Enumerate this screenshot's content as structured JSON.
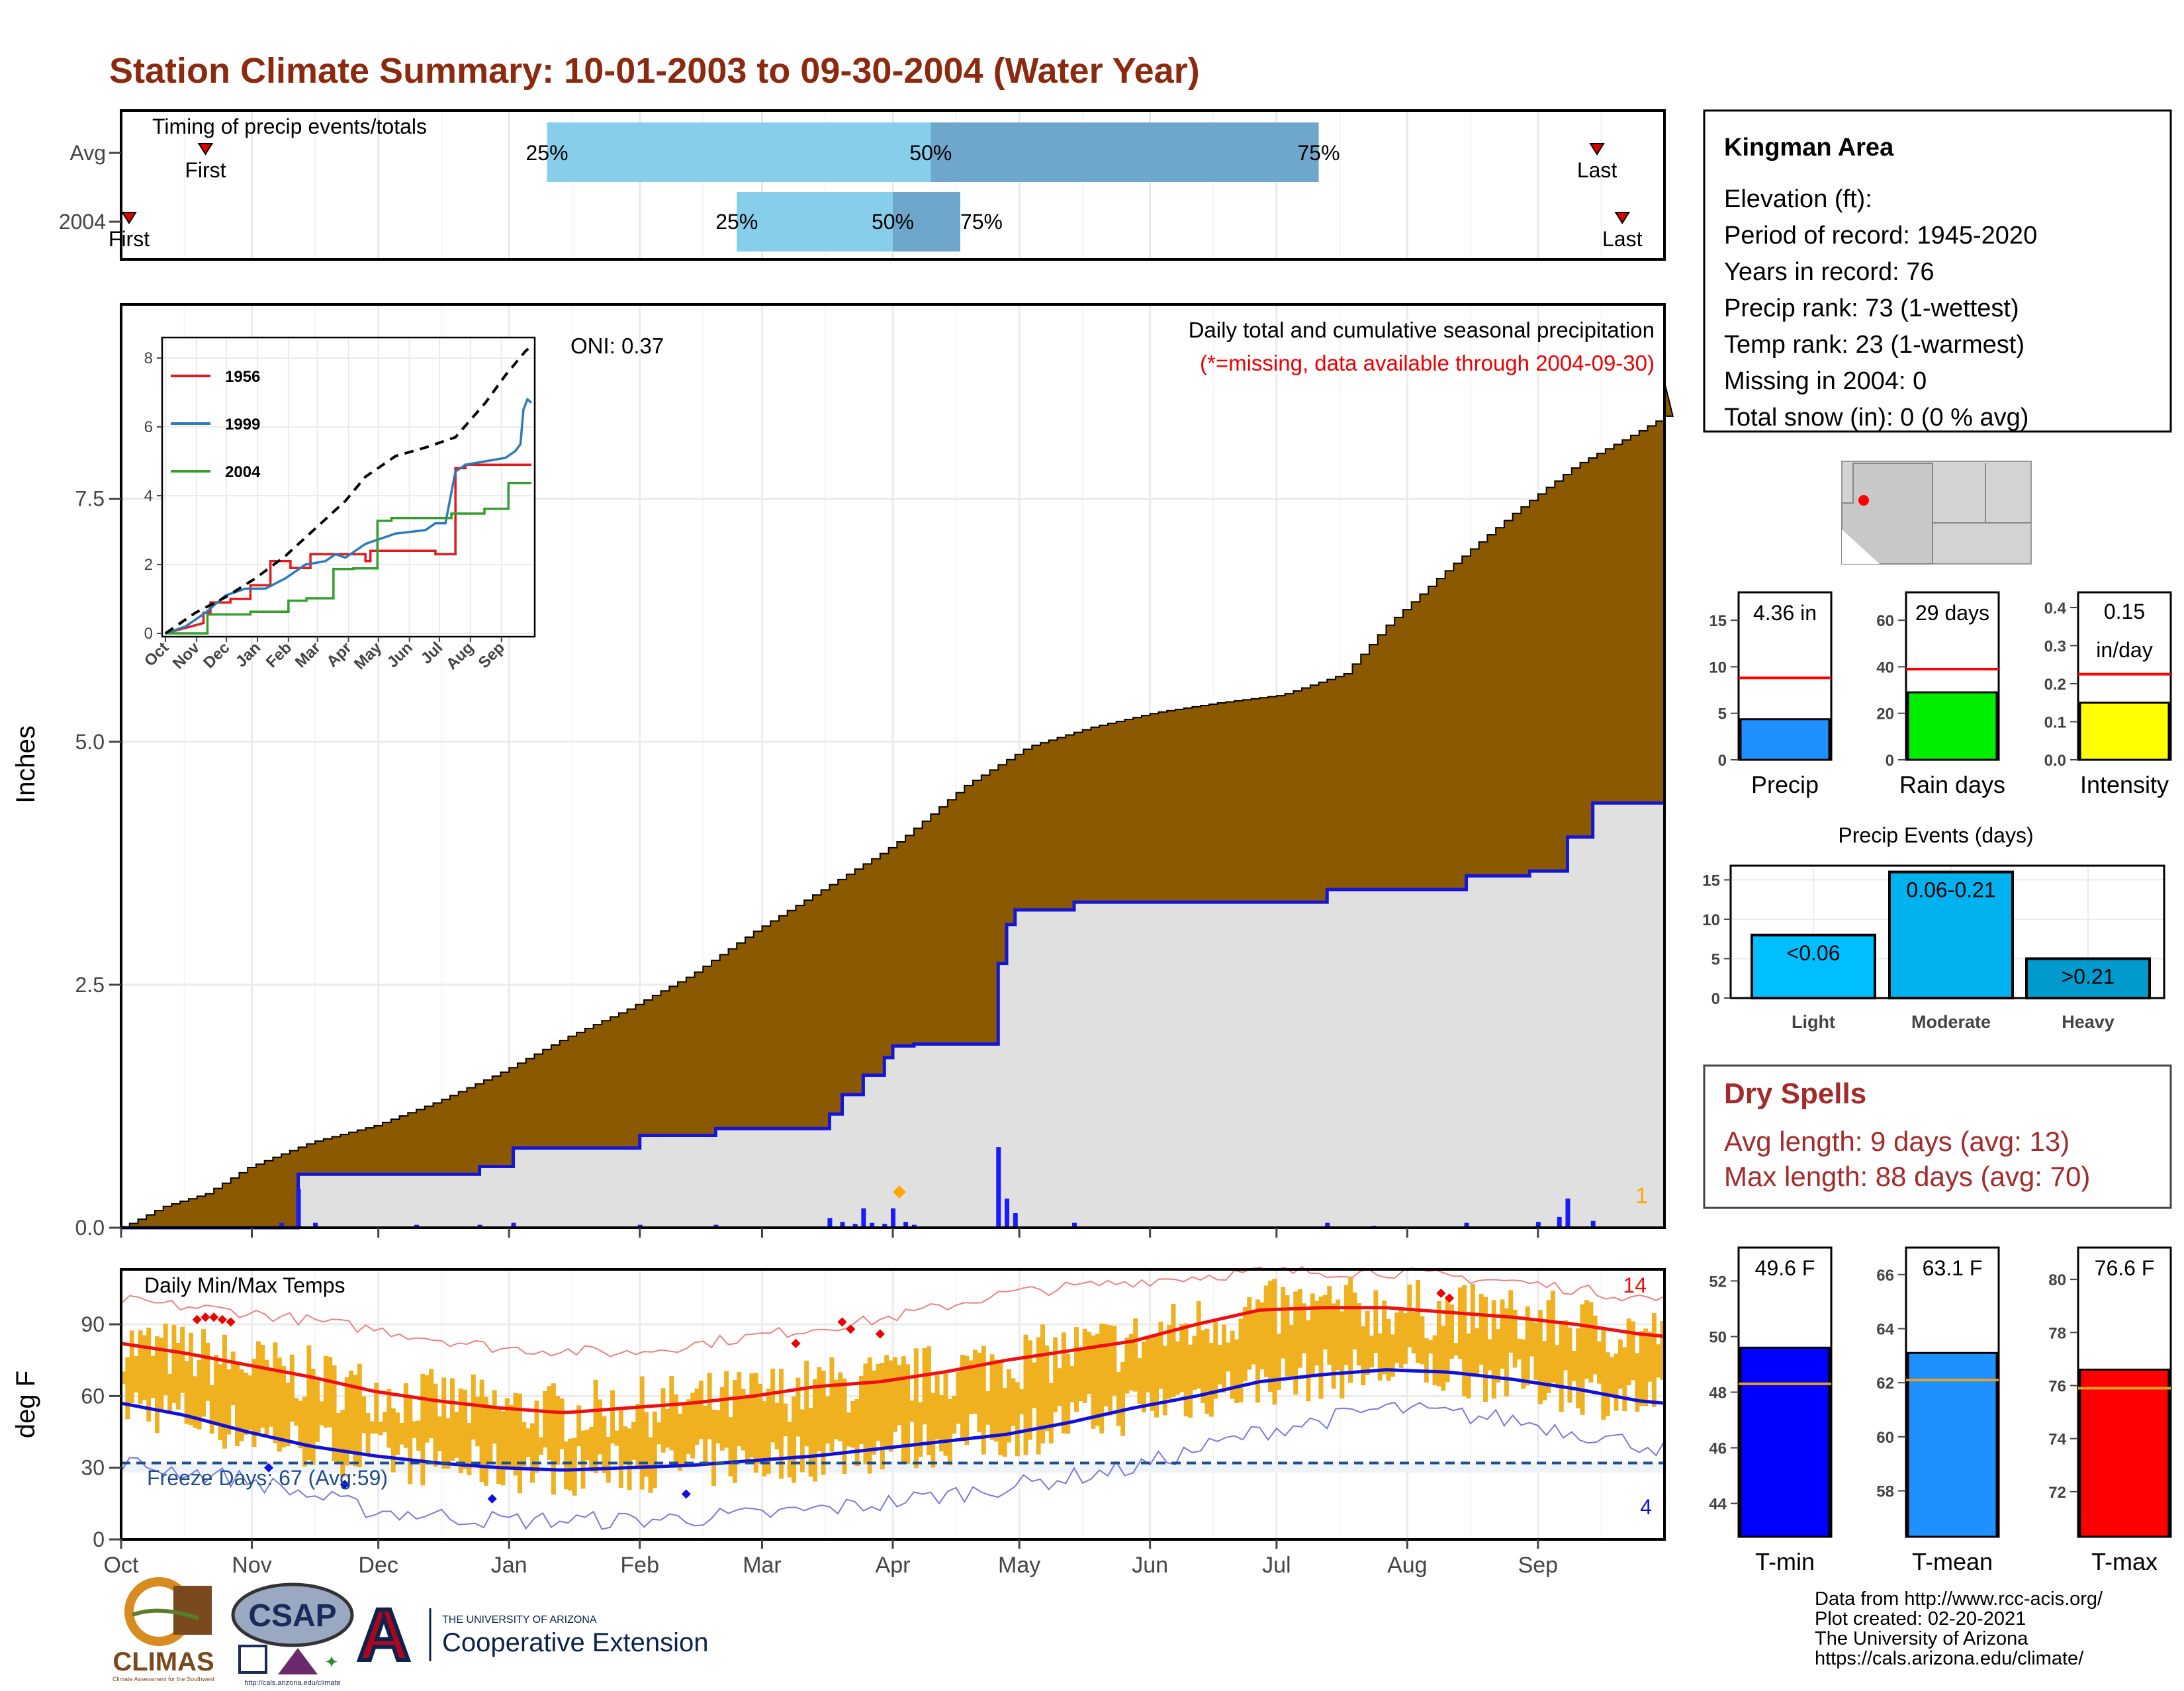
{
  "title": "Station Climate Summary: 10-01-2003 to 09-30-2004 (Water Year)",
  "colors": {
    "title": "#8B2A0E",
    "cum_avg_fill": "#8B5A00",
    "cum_obs_fill": "#E0E0E0",
    "cum_obs_line": "#1515D9",
    "daily_bar": "#1a1aff",
    "temp_bar": "#EFB120",
    "avg_max_line": "#EE1010",
    "avg_min_line": "#1010DD",
    "timing_light": "#87CEEB",
    "timing_dark": "#6FA6CC",
    "dryspell_text": "#A52A2A",
    "precip_bar": "#1E90FF",
    "raindays_bar": "#00EE00",
    "intensity_bar": "#FFFF00",
    "tmin_bar": "#0000FF",
    "tmean_bar": "#1E90FF",
    "tmax_bar": "#FF0000",
    "events_light": "#00BFFF",
    "events_moderate": "#00B2EE",
    "events_heavy": "#009ACD"
  },
  "timing": {
    "label": "Timing of precip events/totals",
    "rows": [
      "Avg",
      "2004"
    ],
    "avg": {
      "first_label": "First",
      "last_label": "Last",
      "p25": "25%",
      "p50": "50%",
      "p75": "75%"
    },
    "y2004": {
      "first_label": "First",
      "last_label": "Last",
      "p25": "25%",
      "p50": "50%",
      "p75": "75%"
    },
    "chart_data": {
      "type": "range-bar",
      "rows": [
        {
          "name": "Avg",
          "first": "2003-10-21",
          "p25": "2004-01-10",
          "p50": "2004-04-10",
          "p75": "2004-07-11",
          "last": "2004-09-15"
        },
        {
          "name": "2004",
          "first": "2003-10-01",
          "p25": "2004-02-24",
          "p50": "2004-04-01",
          "p75": "2004-04-17",
          "last": "2004-09-21"
        }
      ]
    }
  },
  "month_labels": [
    "Oct",
    "Nov",
    "Dec",
    "Jan",
    "Feb",
    "Mar",
    "Apr",
    "May",
    "Jun",
    "Jul",
    "Aug",
    "Sep"
  ],
  "main": {
    "ylabel": "Inches",
    "yticks": [
      "0.0",
      "2.5",
      "5.0",
      "7.5"
    ],
    "oni": "ONI: 0.37",
    "subtitle": "Daily total and cumulative seasonal precipitation",
    "missing_note": "(*=missing, data available through 2004-09-30)",
    "corner_count": "1",
    "chart_data": {
      "type": "area",
      "x_unit": "day of water year (day 0 = 2003-10-01)",
      "ylim": [
        0,
        9.5
      ],
      "avg_cumulative": {
        "x": [
          0,
          10,
          20,
          30,
          45,
          60,
          75,
          90,
          105,
          120,
          135,
          150,
          165,
          180,
          185,
          200,
          215,
          230,
          245,
          260,
          275,
          290,
          300,
          315,
          330,
          345,
          360,
          366
        ],
        "y": [
          0,
          0.22,
          0.35,
          0.62,
          0.88,
          1.05,
          1.3,
          1.6,
          1.95,
          2.25,
          2.6,
          3.05,
          3.45,
          3.85,
          4.0,
          4.55,
          4.95,
          5.15,
          5.3,
          5.4,
          5.48,
          5.7,
          6.2,
          6.8,
          7.35,
          7.85,
          8.2,
          8.35
        ]
      },
      "obs_cumulative": {
        "x": [
          0,
          42,
          42,
          85,
          85,
          93,
          93,
          123,
          123,
          141,
          141,
          168,
          168,
          171,
          171,
          176,
          176,
          181,
          181,
          183,
          183,
          188,
          188,
          208,
          208,
          210,
          210,
          212,
          212,
          226,
          226,
          286,
          286,
          319,
          319,
          334,
          334,
          343,
          343,
          349,
          349,
          366
        ],
        "y": [
          0,
          0,
          0.55,
          0.55,
          0.63,
          0.63,
          0.82,
          0.82,
          0.95,
          0.95,
          1.02,
          1.02,
          1.17,
          1.17,
          1.37,
          1.37,
          1.57,
          1.57,
          1.75,
          1.75,
          1.87,
          1.87,
          1.89,
          1.89,
          2.72,
          2.72,
          3.12,
          3.12,
          3.27,
          3.27,
          3.35,
          3.35,
          3.48,
          3.48,
          3.62,
          3.62,
          3.67,
          3.67,
          4.02,
          4.02,
          4.37,
          4.37
        ]
      },
      "daily_totals": {
        "x": [
          38,
          42,
          46,
          70,
          85,
          93,
          123,
          141,
          168,
          171,
          174,
          176,
          178,
          181,
          183,
          186,
          188,
          208,
          210,
          212,
          226,
          286,
          297,
          319,
          336,
          341,
          343,
          349
        ],
        "y": [
          0.05,
          0.4,
          0.05,
          0.03,
          0.03,
          0.05,
          0.03,
          0.03,
          0.1,
          0.06,
          0.04,
          0.2,
          0.05,
          0.04,
          0.2,
          0.06,
          0.03,
          0.83,
          0.3,
          0.15,
          0.05,
          0.05,
          0.02,
          0.05,
          0.06,
          0.11,
          0.3,
          0.07
        ]
      }
    }
  },
  "inset": {
    "chart_data": {
      "type": "line",
      "x_labels": [
        "Oct",
        "Nov",
        "Dec",
        "Jan",
        "Feb",
        "Mar",
        "Apr",
        "May",
        "Jun",
        "Jul",
        "Aug",
        "Sep"
      ],
      "ylim": [
        0,
        8.5
      ],
      "yticks": [
        0,
        2,
        4,
        6,
        8
      ],
      "series": [
        {
          "name": "1956",
          "color": "#E31A1C",
          "x": [
            0,
            38,
            38,
            45,
            45,
            65,
            65,
            85,
            85,
            105,
            105,
            125,
            125,
            145,
            145,
            200,
            200,
            205,
            205,
            270,
            270,
            290,
            290,
            300,
            300,
            366
          ],
          "y": [
            0,
            0.3,
            0.6,
            0.6,
            0.9,
            0.9,
            1.0,
            1.0,
            1.4,
            1.4,
            2.1,
            2.1,
            1.9,
            1.9,
            2.3,
            2.3,
            2.1,
            2.1,
            2.4,
            2.4,
            2.3,
            2.3,
            4.8,
            4.8,
            4.9,
            4.9
          ]
        },
        {
          "name": "1999",
          "color": "#2B7BBA",
          "x": [
            0,
            20,
            40,
            60,
            80,
            100,
            120,
            140,
            160,
            170,
            180,
            200,
            230,
            260,
            270,
            280,
            290,
            300,
            320,
            340,
            350,
            355,
            358,
            362,
            366
          ],
          "y": [
            0,
            0.2,
            0.6,
            1.1,
            1.3,
            1.3,
            1.6,
            2.0,
            2.1,
            2.3,
            2.2,
            2.6,
            2.9,
            3.0,
            3.2,
            3.2,
            4.7,
            4.9,
            5.0,
            5.1,
            5.3,
            5.5,
            6.5,
            6.8,
            6.7
          ]
        },
        {
          "name": "2004",
          "color": "#33A02C",
          "x": [
            0,
            42,
            42,
            85,
            85,
            123,
            123,
            141,
            141,
            168,
            168,
            188,
            188,
            212,
            212,
            226,
            226,
            286,
            286,
            319,
            319,
            343,
            343,
            366
          ],
          "y": [
            0,
            0,
            0.55,
            0.55,
            0.63,
            0.63,
            0.95,
            0.95,
            1.02,
            1.02,
            1.87,
            1.87,
            1.89,
            1.89,
            3.27,
            3.27,
            3.35,
            3.35,
            3.48,
            3.48,
            3.62,
            3.62,
            4.37,
            4.37
          ]
        },
        {
          "name": "avg",
          "color": "#000000",
          "dashed": true,
          "x": [
            0,
            30,
            60,
            90,
            120,
            150,
            180,
            200,
            230,
            260,
            290,
            320,
            340,
            360,
            366
          ],
          "y": [
            0,
            0.6,
            1.05,
            1.6,
            2.25,
            3.05,
            3.85,
            4.55,
            5.15,
            5.4,
            5.7,
            6.7,
            7.5,
            8.2,
            8.35
          ]
        }
      ]
    }
  },
  "temps": {
    "ylabel": "deg F",
    "label": "Daily Min/Max Temps",
    "yticks": [
      "0",
      "30",
      "60",
      "90"
    ],
    "freeze": "Freeze Days: 67 (Avg:59)",
    "hot_count": "14",
    "cold_count": "4",
    "chart_data": {
      "type": "bar-range",
      "ylim": [
        0,
        113
      ],
      "freeze_line": 32,
      "avg_max": {
        "x": [
          0,
          15,
          30,
          45,
          60,
          75,
          90,
          105,
          120,
          135,
          150,
          165,
          180,
          195,
          210,
          225,
          240,
          255,
          270,
          285,
          300,
          315,
          330,
          345,
          360,
          366
        ],
        "y": [
          82,
          78,
          73,
          68,
          62,
          58,
          55,
          53,
          55,
          57,
          60,
          64,
          66,
          70,
          75,
          79,
          83,
          90,
          96,
          97,
          97,
          95,
          93,
          90,
          86,
          85
        ]
      },
      "avg_min": {
        "x": [
          0,
          15,
          30,
          45,
          60,
          75,
          90,
          105,
          120,
          135,
          150,
          165,
          180,
          195,
          210,
          225,
          240,
          255,
          270,
          285,
          300,
          315,
          330,
          345,
          360,
          366
        ],
        "y": [
          57,
          52,
          45,
          39,
          35,
          32,
          30,
          29,
          30,
          31,
          33,
          35,
          38,
          41,
          44,
          49,
          55,
          60,
          66,
          69,
          71,
          70,
          67,
          63,
          58,
          57
        ]
      },
      "record_max": {
        "x": [
          0,
          30,
          60,
          90,
          120,
          150,
          180,
          210,
          240,
          270,
          300,
          330,
          366
        ],
        "y": [
          100,
          95,
          88,
          80,
          78,
          85,
          92,
          103,
          108,
          112,
          112,
          108,
          100
        ]
      },
      "record_min": {
        "x": [
          0,
          30,
          60,
          90,
          120,
          150,
          180,
          210,
          240,
          270,
          300,
          330,
          366
        ],
        "y": [
          32,
          25,
          12,
          8,
          8,
          10,
          15,
          22,
          30,
          45,
          55,
          50,
          38
        ]
      }
    }
  },
  "station": {
    "name": "Kingman Area",
    "lines": [
      "Elevation (ft):",
      "Period of record: 1945-2020",
      "Years in record: 76",
      "Precip rank: 73 (1-wettest)",
      "Temp rank: 23 (1-warmest)",
      "Missing in 2004: 0",
      "Total snow (in): 0 (0 % avg)"
    ]
  },
  "summary_precip": {
    "panels": [
      {
        "label": "Precip",
        "value_text": "4.36 in",
        "value": 4.36,
        "avg": 8.8,
        "ylim": [
          0,
          18
        ],
        "ticks": [
          "0",
          "5",
          "10",
          "15"
        ],
        "tickvals": [
          0,
          5,
          10,
          15
        ]
      },
      {
        "label": "Rain days",
        "value_text": "29 days",
        "value": 29,
        "avg": 39,
        "ylim": [
          0,
          72
        ],
        "ticks": [
          "0",
          "20",
          "40",
          "60"
        ],
        "tickvals": [
          0,
          20,
          40,
          60
        ]
      },
      {
        "label": "Intensity",
        "value_text": "0.15 in/day",
        "value_lines": [
          "0.15",
          "in/day"
        ],
        "value": 0.15,
        "avg": 0.225,
        "ylim": [
          0,
          0.44
        ],
        "ticks": [
          "0.0",
          "0.1",
          "0.2",
          "0.3",
          "0.4"
        ],
        "tickvals": [
          0,
          0.1,
          0.2,
          0.3,
          0.4
        ]
      }
    ]
  },
  "events": {
    "title": "Precip Events (days)",
    "chart_data": {
      "type": "bar",
      "categories": [
        "Light",
        "Moderate",
        "Heavy"
      ],
      "bar_labels": [
        "<0.06",
        "0.06-0.21",
        ">0.21"
      ],
      "values": [
        8,
        16,
        5
      ],
      "ylim": [
        0,
        16.8
      ],
      "yticks": [
        "0",
        "5",
        "10",
        "15"
      ],
      "ytickvals": [
        0,
        5,
        10,
        15
      ]
    }
  },
  "dry": {
    "title": "Dry Spells",
    "avg": "Avg length: 9 days (avg: 13)",
    "max": "Max length: 88 days (avg: 70)"
  },
  "summary_temp": {
    "panels": [
      {
        "label": "T-min",
        "value_text": "49.6 F",
        "value": 49.6,
        "avg": 48.3,
        "ylim": [
          42.8,
          53.2
        ],
        "ticks": [
          "44",
          "46",
          "48",
          "50",
          "52"
        ],
        "tickvals": [
          44,
          46,
          48,
          50,
          52
        ]
      },
      {
        "label": "T-mean",
        "value_text": "63.1 F",
        "value": 63.1,
        "avg": 62.1,
        "ylim": [
          56.3,
          67.0
        ],
        "ticks": [
          "58",
          "60",
          "62",
          "64",
          "66"
        ],
        "tickvals": [
          58,
          60,
          62,
          64,
          66
        ]
      },
      {
        "label": "T-max",
        "value_text": "76.6 F",
        "value": 76.6,
        "avg": 75.9,
        "ylim": [
          70.3,
          81.2
        ],
        "ticks": [
          "72",
          "74",
          "76",
          "78",
          "80"
        ],
        "tickvals": [
          72,
          74,
          76,
          78,
          80
        ]
      }
    ]
  },
  "footer": {
    "lines": [
      "Data from http://www.rcc-acis.org/",
      "Plot created: 02-20-2021",
      "The University of Arizona",
      "https://cals.arizona.edu/climate/"
    ],
    "climas": "CLIMAS",
    "climas_sub": "Climate Assessment for the Southwest",
    "csap": "CSAP",
    "csap_url": "http://cals.arizona.edu/climate",
    "ua_top": "THE UNIVERSITY OF ARIZONA",
    "ua_bottom": "Cooperative Extension"
  }
}
